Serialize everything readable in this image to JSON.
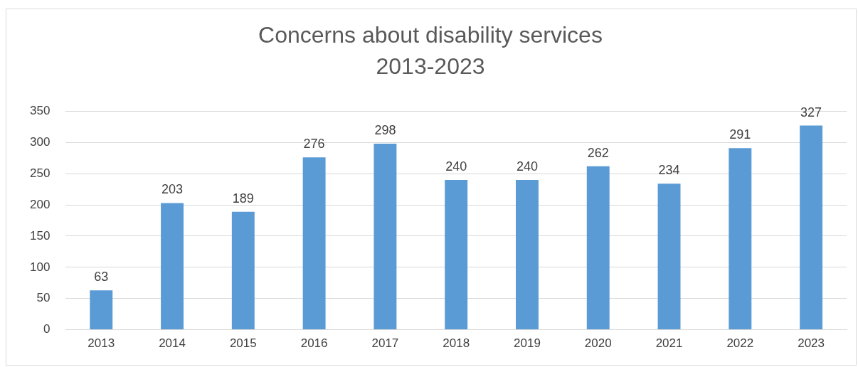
{
  "chart_data": {
    "type": "bar",
    "title": "Concerns about disability services\n2013-2023",
    "categories": [
      "2013",
      "2014",
      "2015",
      "2016",
      "2017",
      "2018",
      "2019",
      "2020",
      "2021",
      "2022",
      "2023"
    ],
    "values": [
      63,
      203,
      189,
      276,
      298,
      240,
      240,
      262,
      234,
      291,
      327
    ],
    "color": "#5b9bd5",
    "ylim": [
      0,
      350
    ],
    "yticks": [
      0,
      50,
      100,
      150,
      200,
      250,
      300,
      350
    ],
    "grid": "y",
    "data_labels": true,
    "legend": false
  }
}
